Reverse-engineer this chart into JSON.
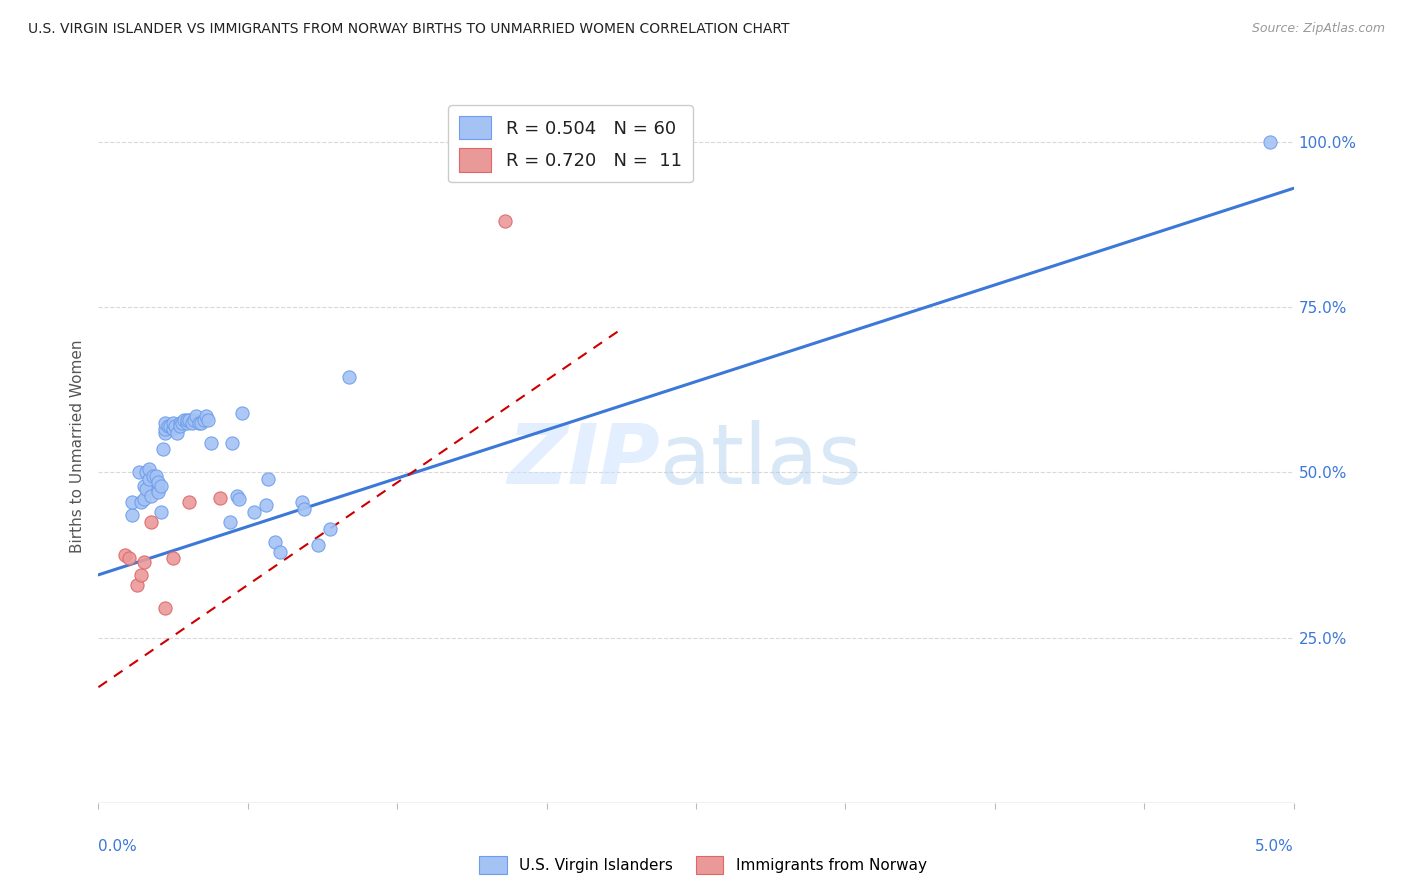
{
  "title": "U.S. VIRGIN ISLANDER VS IMMIGRANTS FROM NORWAY BIRTHS TO UNMARRIED WOMEN CORRELATION CHART",
  "source": "Source: ZipAtlas.com",
  "ylabel": "Births to Unmarried Women",
  "ylabel_ticks": [
    "100.0%",
    "75.0%",
    "50.0%",
    "25.0%"
  ],
  "ylabel_tick_vals": [
    1.0,
    0.75,
    0.5,
    0.25
  ],
  "x_range": [
    0.0,
    0.05
  ],
  "y_range": [
    0.0,
    1.08
  ],
  "legend_label1": "U.S. Virgin Islanders",
  "legend_label2": "Immigrants from Norway",
  "blue_color": "#a4c2f4",
  "pink_color": "#ea9999",
  "blue_fill": "#6d9eeb",
  "pink_fill": "#e06666",
  "blue_line_color": "#3c78d8",
  "pink_line_color": "#cc0000",
  "right_tick_color": "#3c78d8",
  "blue_scatter": [
    [
      0.0014,
      0.435
    ],
    [
      0.0014,
      0.455
    ],
    [
      0.0017,
      0.5
    ],
    [
      0.0018,
      0.455
    ],
    [
      0.0019,
      0.48
    ],
    [
      0.0019,
      0.46
    ],
    [
      0.002,
      0.475
    ],
    [
      0.002,
      0.5
    ],
    [
      0.0021,
      0.49
    ],
    [
      0.0021,
      0.505
    ],
    [
      0.0022,
      0.465
    ],
    [
      0.0023,
      0.495
    ],
    [
      0.0024,
      0.495
    ],
    [
      0.0025,
      0.475
    ],
    [
      0.0025,
      0.47
    ],
    [
      0.0025,
      0.485
    ],
    [
      0.0026,
      0.48
    ],
    [
      0.0026,
      0.44
    ],
    [
      0.0027,
      0.535
    ],
    [
      0.0028,
      0.56
    ],
    [
      0.0028,
      0.565
    ],
    [
      0.0028,
      0.575
    ],
    [
      0.0029,
      0.57
    ],
    [
      0.003,
      0.57
    ],
    [
      0.0031,
      0.565
    ],
    [
      0.0031,
      0.575
    ],
    [
      0.0032,
      0.57
    ],
    [
      0.0033,
      0.56
    ],
    [
      0.0034,
      0.575
    ],
    [
      0.0034,
      0.57
    ],
    [
      0.0035,
      0.575
    ],
    [
      0.0036,
      0.58
    ],
    [
      0.0037,
      0.575
    ],
    [
      0.0037,
      0.58
    ],
    [
      0.0038,
      0.58
    ],
    [
      0.0039,
      0.575
    ],
    [
      0.004,
      0.58
    ],
    [
      0.0041,
      0.585
    ],
    [
      0.0042,
      0.575
    ],
    [
      0.0043,
      0.575
    ],
    [
      0.0044,
      0.58
    ],
    [
      0.0045,
      0.585
    ],
    [
      0.0046,
      0.58
    ],
    [
      0.0047,
      0.545
    ],
    [
      0.0055,
      0.425
    ],
    [
      0.0056,
      0.545
    ],
    [
      0.0058,
      0.465
    ],
    [
      0.0059,
      0.46
    ],
    [
      0.006,
      0.59
    ],
    [
      0.0065,
      0.44
    ],
    [
      0.007,
      0.45
    ],
    [
      0.0071,
      0.49
    ],
    [
      0.0074,
      0.395
    ],
    [
      0.0076,
      0.38
    ],
    [
      0.0085,
      0.455
    ],
    [
      0.0086,
      0.445
    ],
    [
      0.0092,
      0.39
    ],
    [
      0.0097,
      0.415
    ],
    [
      0.0105,
      0.645
    ],
    [
      0.049,
      1.0
    ]
  ],
  "pink_scatter": [
    [
      0.0011,
      0.375
    ],
    [
      0.0013,
      0.37
    ],
    [
      0.0016,
      0.33
    ],
    [
      0.0018,
      0.345
    ],
    [
      0.0019,
      0.365
    ],
    [
      0.0022,
      0.425
    ],
    [
      0.0028,
      0.295
    ],
    [
      0.0031,
      0.37
    ],
    [
      0.0038,
      0.455
    ],
    [
      0.0051,
      0.462
    ],
    [
      0.017,
      0.88
    ]
  ],
  "blue_trend_x": [
    0.0,
    0.05
  ],
  "blue_trend_y": [
    0.345,
    0.93
  ],
  "pink_trend_x": [
    0.0,
    0.022
  ],
  "pink_trend_y": [
    0.175,
    0.72
  ],
  "watermark_zip": "ZIP",
  "watermark_atlas": "atlas",
  "background_color": "#ffffff",
  "grid_color": "#d9d9d9"
}
